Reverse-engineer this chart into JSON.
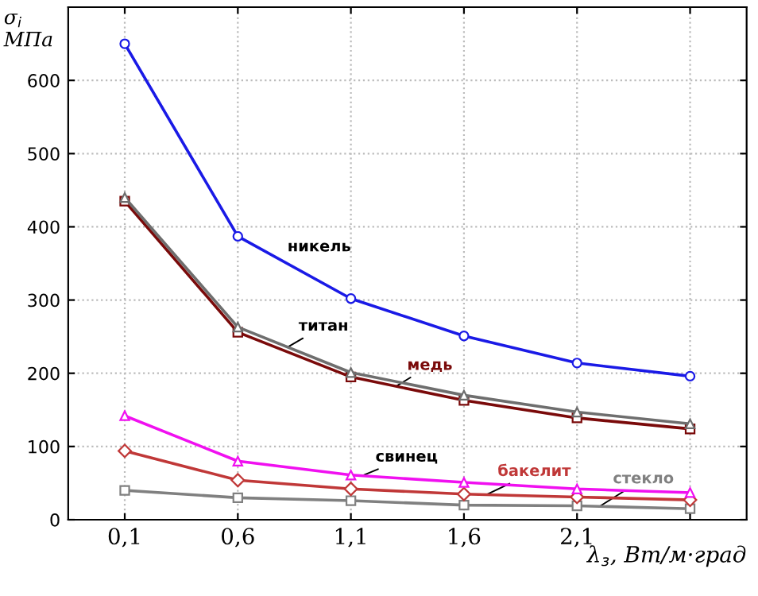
{
  "chart_data": {
    "type": "line",
    "ylabel": "σ$_{i}$\nМПа",
    "xlabel": "λ$_{з}$, Вт/м·град",
    "x": [
      0.1,
      0.6,
      1.1,
      1.6,
      2.1,
      2.6
    ],
    "xlim": [
      -0.15,
      2.85
    ],
    "xticks": [
      {
        "value": 0.1,
        "label": "0,1"
      },
      {
        "value": 0.6,
        "label": "0,6"
      },
      {
        "value": 1.1,
        "label": "1,1"
      },
      {
        "value": 1.6,
        "label": "1,6"
      },
      {
        "value": 2.1,
        "label": "2,1"
      },
      {
        "value": 2.6,
        "label": null
      }
    ],
    "ylim": [
      0,
      700
    ],
    "yticks": [
      0,
      100,
      200,
      300,
      400,
      500,
      600
    ],
    "grid": true,
    "line_style": "solid",
    "series": [
      {
        "name": "никель",
        "color": "#1a1ae6",
        "marker": "circle",
        "values": [
          650,
          387,
          302,
          251,
          214,
          196
        ]
      },
      {
        "name": "титан",
        "color": "#6e6e6e",
        "marker": "triangle",
        "values": [
          440,
          263,
          201,
          170,
          147,
          131
        ]
      },
      {
        "name": "медь",
        "color": "#7a0a0a",
        "marker": "square",
        "values": [
          435,
          256,
          195,
          163,
          139,
          124
        ]
      },
      {
        "name": "свинец",
        "color": "#f010f0",
        "marker": "triangle",
        "values": [
          142,
          80,
          61,
          51,
          42,
          37
        ]
      },
      {
        "name": "бакелит",
        "color": "#c03838",
        "marker": "diamond",
        "values": [
          94,
          54,
          42,
          35,
          31,
          27
        ]
      },
      {
        "name": "стекло",
        "color": "#808080",
        "marker": "square",
        "values": [
          40,
          30,
          26,
          20,
          19,
          15
        ]
      }
    ]
  }
}
